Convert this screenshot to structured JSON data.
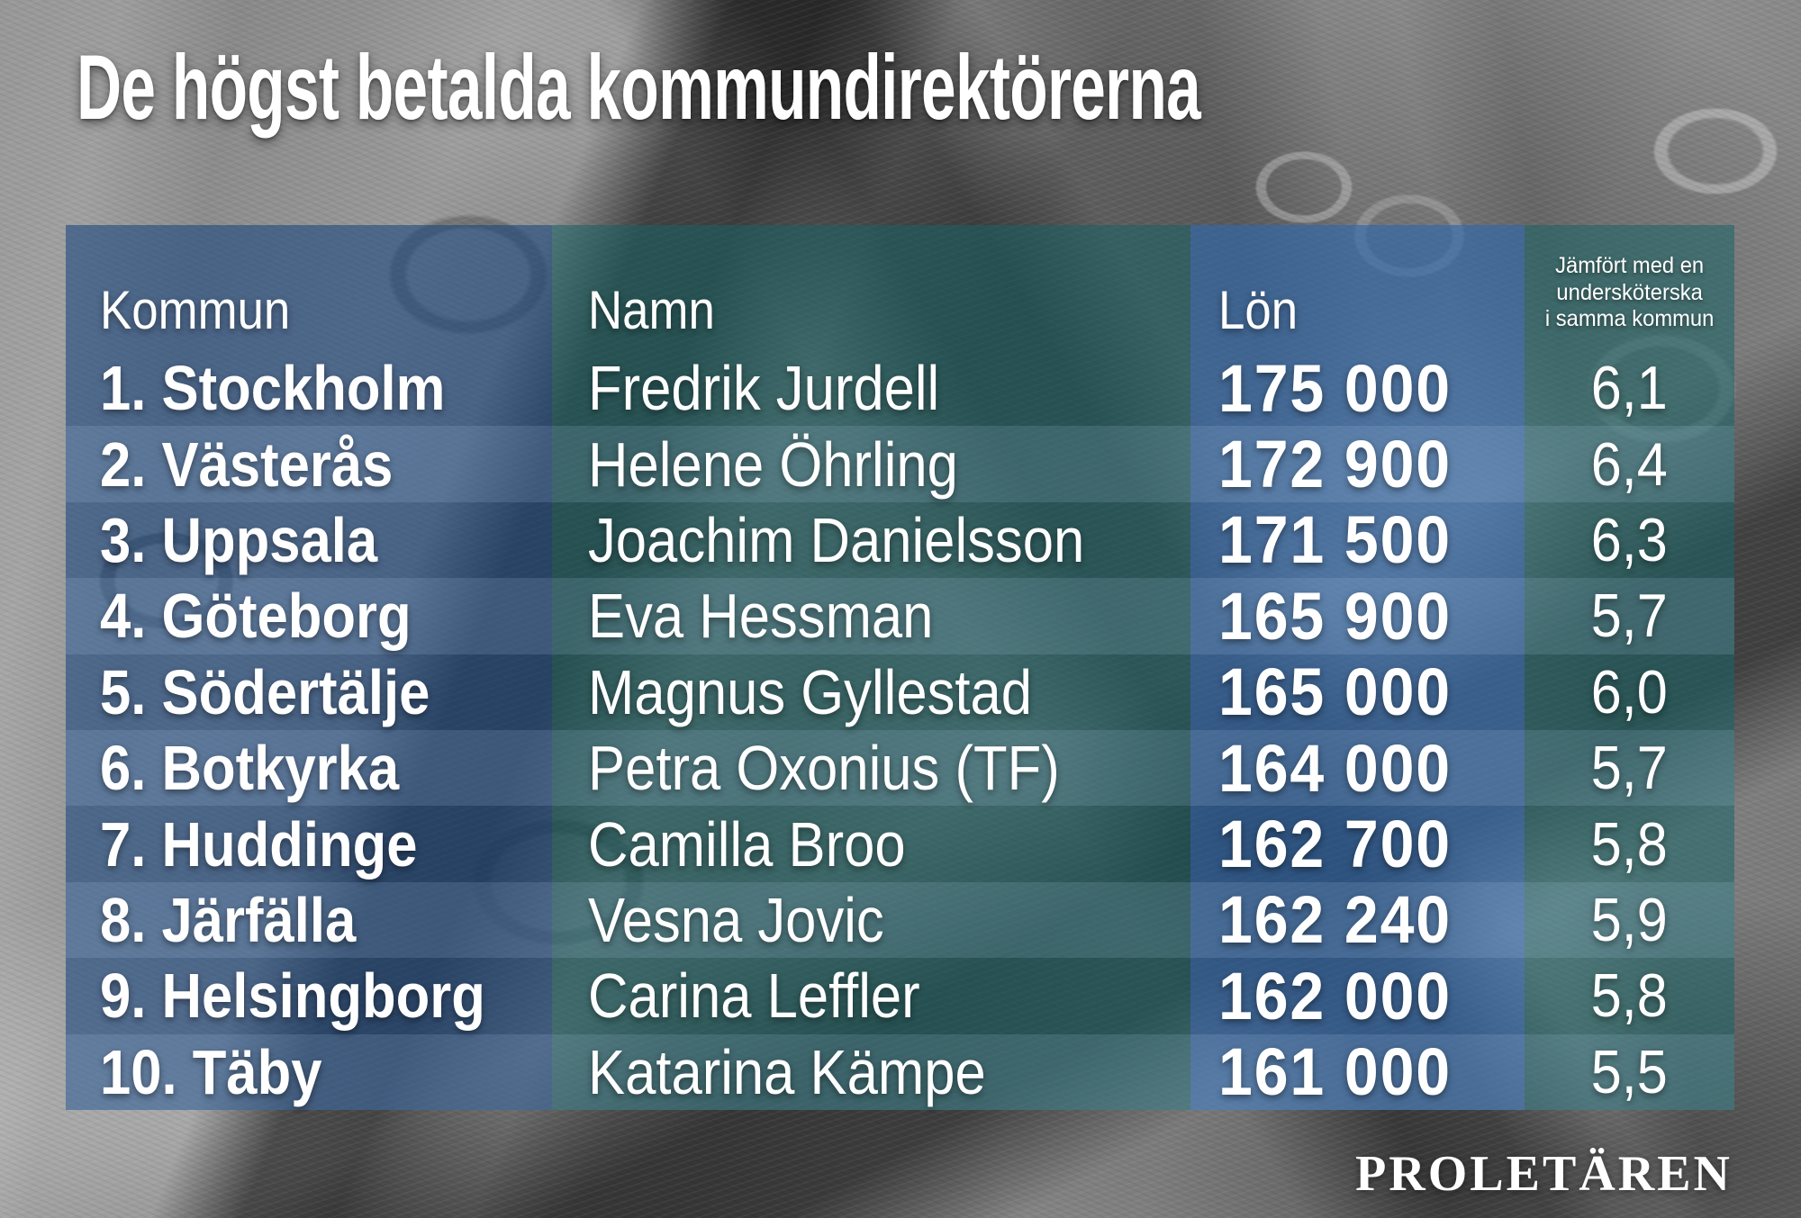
{
  "title": "De högst betalda kommundirektörerna",
  "table": {
    "headers": {
      "kommun": "Kommun",
      "namn": "Namn",
      "lon": "Lön",
      "comparison_lines": [
        "Jämfört med en",
        "undersköterska",
        "i samma kommun"
      ]
    },
    "rows": [
      {
        "kommun": "1. Stockholm",
        "namn": "Fredrik Jurdell",
        "lon": "175 000",
        "jamfort": "6,1"
      },
      {
        "kommun": "2. Västerås",
        "namn": "Helene Öhrling",
        "lon": "172 900",
        "jamfort": "6,4"
      },
      {
        "kommun": "3. Uppsala",
        "namn": "Joachim Danielsson",
        "lon": "171 500",
        "jamfort": "6,3"
      },
      {
        "kommun": "4. Göteborg",
        "namn": "Eva Hessman",
        "lon": "165 900",
        "jamfort": "5,7"
      },
      {
        "kommun": "5. Södertälje",
        "namn": "Magnus Gyllestad",
        "lon": "165 000",
        "jamfort": "6,0"
      },
      {
        "kommun": "6. Botkyrka",
        "namn": "Petra Oxonius (TF)",
        "lon": "164 000",
        "jamfort": "5,7"
      },
      {
        "kommun": "7. Huddinge",
        "namn": "Camilla Broo",
        "lon": "162 700",
        "jamfort": "5,8"
      },
      {
        "kommun": "8. Järfälla",
        "namn": "Vesna Jovic",
        "lon": "162 240",
        "jamfort": "5,9"
      },
      {
        "kommun": "9. Helsingborg",
        "namn": "Carina Leffler",
        "lon": "162 000",
        "jamfort": "5,8"
      },
      {
        "kommun": "10. Täby",
        "namn": "Katarina Kämpe",
        "lon": "161 000",
        "jamfort": "5,5"
      }
    ]
  },
  "footer": {
    "logo": "PROLETÄREN"
  },
  "colors": {
    "band_kommun": "#1c4880",
    "band_namn": "#166264",
    "band_lon": "#3069ac",
    "band_jamfort": "#186466",
    "text": "#ffffff",
    "photo_gray": "#7b7b7b"
  },
  "chart_data": {
    "type": "table",
    "title": "De högst betalda kommundirektörerna",
    "columns": [
      "Kommun",
      "Namn",
      "Lön",
      "Jämfört med en undersköterska i samma kommun"
    ],
    "rows": [
      [
        "1. Stockholm",
        "Fredrik Jurdell",
        175000,
        6.1
      ],
      [
        "2. Västerås",
        "Helene Öhrling",
        172900,
        6.4
      ],
      [
        "3. Uppsala",
        "Joachim Danielsson",
        171500,
        6.3
      ],
      [
        "4. Göteborg",
        "Eva Hessman",
        165900,
        5.7
      ],
      [
        "5. Södertälje",
        "Magnus Gyllestad",
        165000,
        6.0
      ],
      [
        "6. Botkyrka",
        "Petra Oxonius (TF)",
        164000,
        5.7
      ],
      [
        "7. Huddinge",
        "Camilla Broo",
        162700,
        5.8
      ],
      [
        "8. Järfälla",
        "Vesna Jovic",
        162240,
        5.9
      ],
      [
        "9. Helsingborg",
        "Carina Leffler",
        162000,
        5.8
      ],
      [
        "10. Täby",
        "Katarina Kämpe",
        161000,
        5.5
      ]
    ]
  }
}
